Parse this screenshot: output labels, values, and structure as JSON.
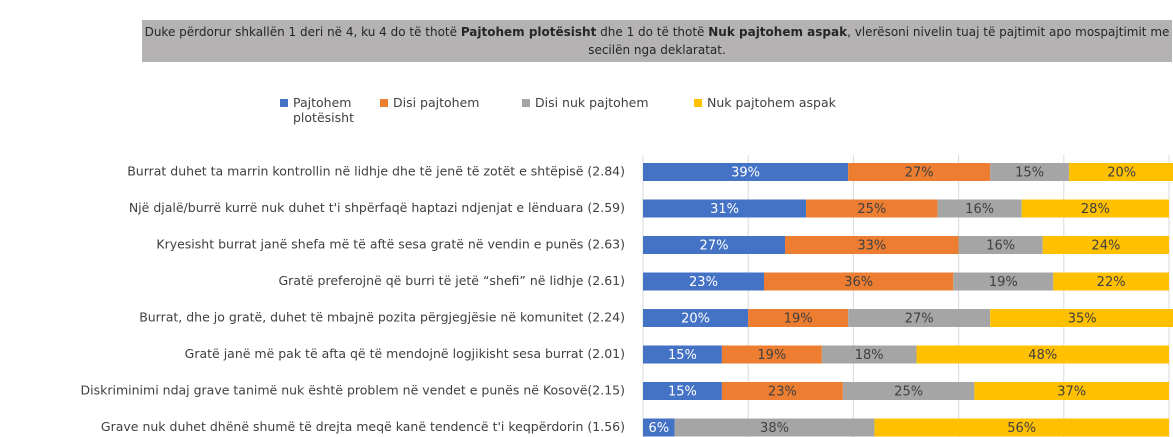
{
  "chart_data": {
    "type": "stacked-barh",
    "title": [
      {
        "text": "Duke përdorur shkallën 1 deri në 4, ku 4 do të thotë ",
        "bold": false
      },
      {
        "text": "Pajtohem plotësisht",
        "bold": true
      },
      {
        "text": " dhe 1 do të thotë ",
        "bold": false
      },
      {
        "text": "Nuk pajtohem aspak",
        "bold": true
      },
      {
        "text": ", vlerësoni nivelin tuaj të pajtimit apo mospajtimit me secilën nga deklaratat.",
        "bold": false
      }
    ],
    "categories": [
      "Burrat duhet ta marrin kontrollin në lidhje dhe të jenë të zotët e shtëpisë (2.84)",
      "Një djalë/burrë kurrë nuk duhet t'i shpërfaqë haptazi ndjenjat e lënduara (2.59)",
      "Kryesisht burrat janë shefa më të aftë sesa gratë në vendin e punës (2.63)",
      "Gratë preferojnë që burri të jetë “shefi” në lidhje (2.61)",
      "Burrat, dhe jo gratë, duhet të mbajnë pozita përgjegjësie në komunitet (2.24)",
      "Gratë janë më pak të afta që të mendojnë logjikisht sesa burrat (2.01)",
      "Diskriminimi ndaj grave tanimë nuk është problem në vendet e punës në Kosovë(2.15)",
      "Grave nuk duhet dhënë shumë të drejta meqë kanë tendencë t'i keqpërdorin (1.56)"
    ],
    "series": [
      {
        "name": "Pajtohem plotësisht",
        "color": "#4472c4",
        "label_color": "#ffffff",
        "values": [
          39,
          31,
          27,
          23,
          20,
          15,
          15,
          6
        ],
        "value_labels": [
          "39%",
          "31%",
          "27%",
          "23%",
          "20%",
          "15%",
          "15%",
          "6%"
        ]
      },
      {
        "name": "Disi pajtohem",
        "color": "#ed7d31",
        "label_color": "#404040",
        "values": [
          27,
          25,
          33,
          36,
          19,
          19,
          23,
          null
        ],
        "value_labels": [
          "27%",
          "25%",
          "33%",
          "36%",
          "19%",
          "19%",
          "23%",
          null
        ]
      },
      {
        "name": "Disi nuk pajtohem",
        "color": "#a5a5a5",
        "label_color": "#404040",
        "values": [
          15,
          16,
          16,
          19,
          27,
          18,
          25,
          38
        ],
        "value_labels": [
          "15%",
          "16%",
          "16%",
          "19%",
          "27%",
          "18%",
          "25%",
          "38%"
        ]
      },
      {
        "name": "Nuk pajtohem aspak",
        "color": "#ffc000",
        "label_color": "#404040",
        "values": [
          20,
          28,
          24,
          22,
          35,
          48,
          37,
          56
        ],
        "value_labels": [
          "20%",
          "28%",
          "24%",
          "22%",
          "35%",
          "48%",
          "37%",
          "56%"
        ]
      }
    ],
    "xlim": [
      0,
      100
    ],
    "xticks": [
      0,
      20,
      40,
      60,
      80,
      100
    ],
    "grid": true
  }
}
